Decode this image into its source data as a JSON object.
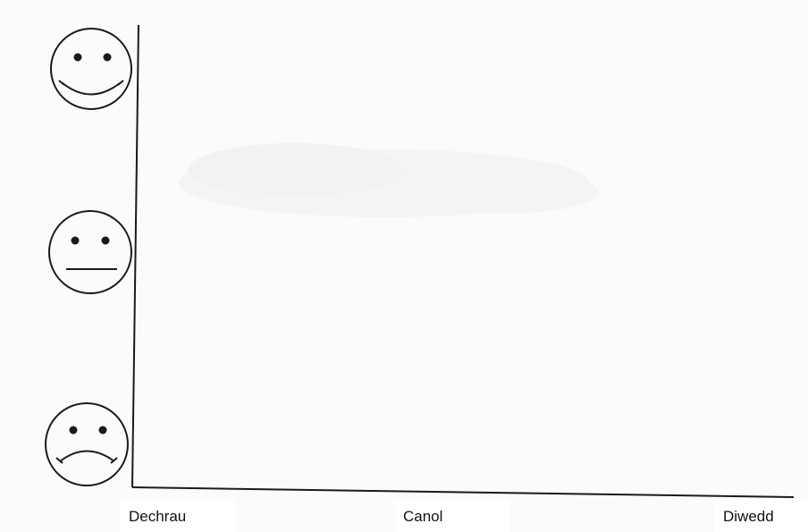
{
  "faces": [
    {
      "name": "happy-face",
      "mood": "happy"
    },
    {
      "name": "neutral-face",
      "mood": "neutral"
    },
    {
      "name": "sad-face",
      "mood": "sad"
    }
  ],
  "x_axis": {
    "labels": [
      "Dechrau",
      "Canol",
      "Diwedd"
    ]
  },
  "colors": {
    "ink": "#1a1a1a",
    "paper": "#fbfbfb",
    "smudge": "#eeeeee"
  }
}
